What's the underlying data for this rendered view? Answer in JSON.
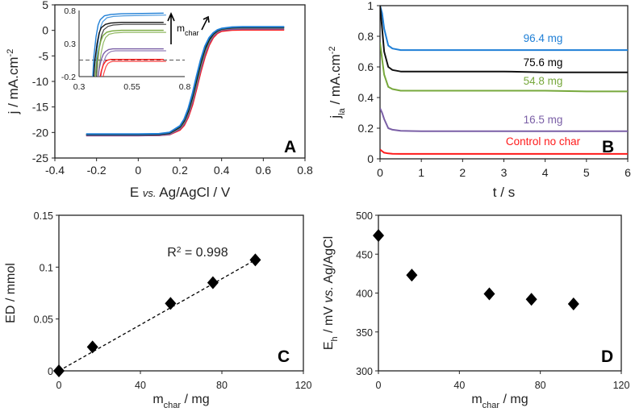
{
  "chart_data": [
    {
      "type": "line",
      "panel_letter": "A",
      "xlabel": {
        "main": "E ",
        "italic": "vs.",
        "rest": " Ag/AgCl  /  V"
      },
      "ylabel": {
        "main": "j / mA.cm",
        "sup": "-2"
      },
      "xlim": [
        -0.4,
        0.8
      ],
      "ylim": [
        -25,
        5
      ],
      "xticks": [
        -0.4,
        -0.2,
        0,
        0.2,
        0.4,
        0.6,
        0.8
      ],
      "yticks": [
        5,
        0,
        -5,
        -10,
        -15,
        -20,
        -25
      ],
      "E": [
        -0.25,
        0,
        0.1,
        0.15,
        0.2,
        0.22,
        0.24,
        0.26,
        0.28,
        0.3,
        0.32,
        0.34,
        0.36,
        0.38,
        0.4,
        0.45,
        0.5,
        0.7
      ],
      "series": [
        {
          "name": "96.4 mg",
          "color": "#1f7fd6",
          "j": [
            -20.3,
            -20.3,
            -20.24,
            -19.98,
            -18.7,
            -17.4,
            -15.3,
            -12.4,
            -8.9,
            -5.7,
            -3.1,
            -1.45,
            -0.5,
            0.09,
            0.38,
            0.64,
            0.69,
            0.7
          ]
        },
        {
          "name": "75.6 mg",
          "color": "#111111",
          "j": [
            -20.4,
            -20.4,
            -20.35,
            -20.1,
            -18.9,
            -17.7,
            -15.8,
            -13.0,
            -9.6,
            -6.3,
            -3.6,
            -1.8,
            -0.7,
            -0.05,
            0.3,
            0.55,
            0.6,
            0.6
          ]
        },
        {
          "name": "54.8 mg",
          "color": "#77a83c",
          "j": [
            -20.4,
            -20.4,
            -20.36,
            -20.15,
            -19.0,
            -17.9,
            -16.0,
            -13.3,
            -10.0,
            -6.7,
            -3.9,
            -2.0,
            -0.8,
            -0.1,
            0.25,
            0.5,
            0.55,
            0.55
          ]
        },
        {
          "name": "16.5 mg",
          "color": "#7a5fa6",
          "j": [
            -20.6,
            -20.6,
            -20.55,
            -20.35,
            -19.3,
            -18.3,
            -16.6,
            -14.0,
            -10.8,
            -7.5,
            -4.6,
            -2.5,
            -1.1,
            -0.35,
            0.05,
            0.25,
            0.3,
            0.3
          ]
        },
        {
          "name": "Control no char",
          "color": "#ff1a1a",
          "j": [
            -20.6,
            -20.6,
            -20.56,
            -20.4,
            -19.5,
            -18.6,
            -17.0,
            -14.6,
            -11.4,
            -8.1,
            -5.2,
            -2.9,
            -1.4,
            -0.55,
            -0.15,
            0.05,
            0.1,
            0.1
          ]
        }
      ],
      "inset": {
        "xlim": [
          0.3,
          0.8
        ],
        "ylim": [
          -0.2,
          0.8
        ],
        "xticks": [
          0.3,
          0.55,
          0.8
        ],
        "yticks": [
          0.8,
          0.3,
          -0.2
        ],
        "dashed_baseline": 0.05,
        "annotation": {
          "main": "m",
          "sub": "char"
        },
        "series": [
          {
            "color": "#1f7fd6",
            "E": [
              0.365,
              0.37,
              0.38,
              0.39,
              0.4,
              0.42,
              0.45,
              0.5,
              0.7
            ],
            "j": [
              -0.2,
              0.1,
              0.4,
              0.58,
              0.66,
              0.72,
              0.74,
              0.75,
              0.76
            ]
          },
          {
            "color": "#111111",
            "E": [
              0.37,
              0.375,
              0.385,
              0.395,
              0.405,
              0.425,
              0.45,
              0.5,
              0.7
            ],
            "j": [
              -0.2,
              0.05,
              0.3,
              0.46,
              0.54,
              0.59,
              0.61,
              0.62,
              0.62
            ]
          },
          {
            "color": "#77a83c",
            "E": [
              0.378,
              0.383,
              0.393,
              0.403,
              0.413,
              0.43,
              0.455,
              0.5,
              0.7
            ],
            "j": [
              -0.2,
              0.0,
              0.2,
              0.34,
              0.42,
              0.47,
              0.49,
              0.5,
              0.5
            ]
          },
          {
            "color": "#7a5fa6",
            "E": [
              0.39,
              0.395,
              0.405,
              0.415,
              0.425,
              0.44,
              0.46,
              0.5,
              0.7
            ],
            "j": [
              -0.2,
              -0.08,
              0.06,
              0.14,
              0.18,
              0.21,
              0.22,
              0.22,
              0.22
            ]
          },
          {
            "color": "#ff1a1a",
            "E": [
              0.4,
              0.405,
              0.415,
              0.425,
              0.435,
              0.45,
              0.47,
              0.5,
              0.7
            ],
            "j": [
              -0.2,
              -0.12,
              -0.02,
              0.03,
              0.05,
              0.06,
              0.06,
              0.06,
              0.06
            ]
          }
        ]
      }
    },
    {
      "type": "line",
      "panel_letter": "B",
      "xlabel": {
        "main": "t / s"
      },
      "ylabel": {
        "main": "j",
        "sub": "la",
        "rest": " / mA.cm",
        "sup": "-2"
      },
      "xlim": [
        0,
        6
      ],
      "ylim": [
        0,
        1
      ],
      "xticks": [
        0,
        1,
        2,
        3,
        4,
        5,
        6
      ],
      "yticks": [
        1,
        0.8,
        0.6,
        0.4,
        0.2,
        0
      ],
      "t": [
        0,
        0.05,
        0.1,
        0.2,
        0.3,
        0.5,
        1,
        2,
        3,
        4,
        5,
        6
      ],
      "series": [
        {
          "name": "96.4 mg",
          "color": "#1f7fd6",
          "values": [
            1.0,
            0.95,
            0.85,
            0.74,
            0.72,
            0.71,
            0.71,
            0.71,
            0.71,
            0.71,
            0.71,
            0.71
          ]
        },
        {
          "name": "75.6 mg",
          "color": "#111111",
          "values": [
            1.0,
            0.85,
            0.7,
            0.6,
            0.58,
            0.57,
            0.57,
            0.57,
            0.57,
            0.565,
            0.565,
            0.565
          ]
        },
        {
          "name": "54.8 mg",
          "color": "#77a83c",
          "values": [
            0.76,
            0.65,
            0.55,
            0.47,
            0.455,
            0.445,
            0.445,
            0.445,
            0.445,
            0.445,
            0.44,
            0.44
          ]
        },
        {
          "name": "16.5 mg",
          "color": "#7a5fa6",
          "values": [
            0.33,
            0.3,
            0.26,
            0.2,
            0.19,
            0.183,
            0.18,
            0.18,
            0.18,
            0.18,
            0.18,
            0.18
          ]
        },
        {
          "name": "Control no char",
          "color": "#ff1a1a",
          "values": [
            0.06,
            0.05,
            0.04,
            0.035,
            0.033,
            0.032,
            0.032,
            0.032,
            0.032,
            0.032,
            0.032,
            0.032
          ]
        }
      ]
    },
    {
      "type": "scatter",
      "panel_letter": "C",
      "xlabel": {
        "main": "m",
        "sub": "char",
        "rest": " / mg"
      },
      "ylabel": {
        "main": "ED / mmol"
      },
      "xlim": [
        0,
        120
      ],
      "ylim": [
        0,
        0.15
      ],
      "xticks": [
        0,
        40,
        80,
        120
      ],
      "yticks": [
        0.15,
        0.1,
        0.05,
        0
      ],
      "x": [
        0,
        16.5,
        54.8,
        75.6,
        96.4
      ],
      "y": [
        0,
        0.023,
        0.065,
        0.085,
        0.107
      ],
      "trendline": {
        "x": [
          0,
          96.4
        ],
        "y": [
          0,
          0.107
        ],
        "style": "dashed"
      },
      "annotation": {
        "main": "R",
        "sup": "2",
        "rest": " = 0.998"
      }
    },
    {
      "type": "scatter",
      "panel_letter": "D",
      "xlabel": {
        "main": "m",
        "sub": "char",
        "rest": " / mg"
      },
      "ylabel": {
        "main": "E",
        "sub": "h",
        "rest": " / mV ",
        "italic": "vs.",
        "rest2": " Ag/AgCl"
      },
      "xlim": [
        0,
        120
      ],
      "ylim": [
        300,
        500
      ],
      "xticks": [
        0,
        40,
        80,
        120
      ],
      "yticks": [
        500,
        450,
        400,
        350,
        300
      ],
      "x": [
        0,
        16.5,
        54.8,
        75.6,
        96.4
      ],
      "y": [
        474,
        423,
        399,
        392,
        386
      ]
    }
  ]
}
